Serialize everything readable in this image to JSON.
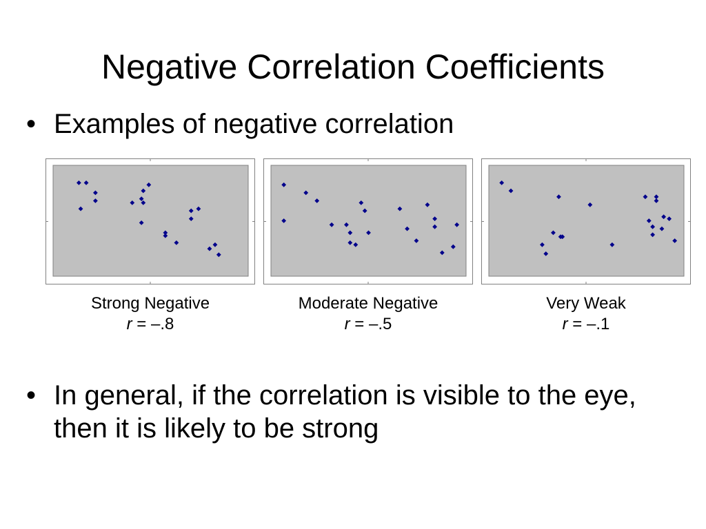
{
  "title": "Negative Correlation Coefficients",
  "bullets": [
    "Examples of negative correlation",
    "In general, if the correlation is visible to the eye, then it is likely to be strong"
  ],
  "bullet_symbol": "•",
  "colors": {
    "plot_background": "#c0c0c0",
    "frame": "#808080",
    "point": "#00008b"
  },
  "chart_data": [
    {
      "type": "scatter",
      "caption": "Strong Negative",
      "r_symbol": "r",
      "r_value": " = –.8",
      "xlim": [
        0,
        100
      ],
      "ylim": [
        0,
        100
      ],
      "grid": false,
      "points": [
        [
          11,
          88
        ],
        [
          15,
          88
        ],
        [
          12,
          62
        ],
        [
          20,
          78
        ],
        [
          20,
          70
        ],
        [
          40,
          68
        ],
        [
          45,
          72
        ],
        [
          46,
          80
        ],
        [
          46,
          68
        ],
        [
          49,
          86
        ],
        [
          45,
          48
        ],
        [
          58,
          38
        ],
        [
          58,
          35
        ],
        [
          64,
          28
        ],
        [
          72,
          52
        ],
        [
          72,
          60
        ],
        [
          76,
          62
        ],
        [
          82,
          22
        ],
        [
          85,
          26
        ],
        [
          87,
          16
        ]
      ]
    },
    {
      "type": "scatter",
      "caption": "Moderate Negative",
      "r_symbol": "r",
      "r_value": " = –.5",
      "xlim": [
        0,
        100
      ],
      "ylim": [
        0,
        100
      ],
      "grid": false,
      "points": [
        [
          4,
          86
        ],
        [
          16,
          78
        ],
        [
          22,
          70
        ],
        [
          4,
          50
        ],
        [
          30,
          46
        ],
        [
          38,
          46
        ],
        [
          40,
          38
        ],
        [
          40,
          28
        ],
        [
          43,
          26
        ],
        [
          46,
          68
        ],
        [
          48,
          60
        ],
        [
          50,
          38
        ],
        [
          67,
          62
        ],
        [
          71,
          42
        ],
        [
          76,
          30
        ],
        [
          82,
          66
        ],
        [
          86,
          52
        ],
        [
          86,
          44
        ],
        [
          90,
          18
        ],
        [
          96,
          24
        ],
        [
          98,
          46
        ]
      ]
    },
    {
      "type": "scatter",
      "caption": "Very Weak",
      "r_symbol": "r",
      "r_value": " = –.1",
      "xlim": [
        0,
        100
      ],
      "ylim": [
        0,
        100
      ],
      "grid": false,
      "points": [
        [
          4,
          88
        ],
        [
          9,
          80
        ],
        [
          26,
          26
        ],
        [
          28,
          17
        ],
        [
          32,
          38
        ],
        [
          36,
          34
        ],
        [
          37,
          34
        ],
        [
          35,
          74
        ],
        [
          52,
          66
        ],
        [
          64,
          26
        ],
        [
          82,
          74
        ],
        [
          84,
          50
        ],
        [
          86,
          44
        ],
        [
          86,
          36
        ],
        [
          88,
          70
        ],
        [
          88,
          74
        ],
        [
          92,
          54
        ],
        [
          91,
          42
        ],
        [
          95,
          52
        ],
        [
          98,
          30
        ]
      ]
    }
  ]
}
